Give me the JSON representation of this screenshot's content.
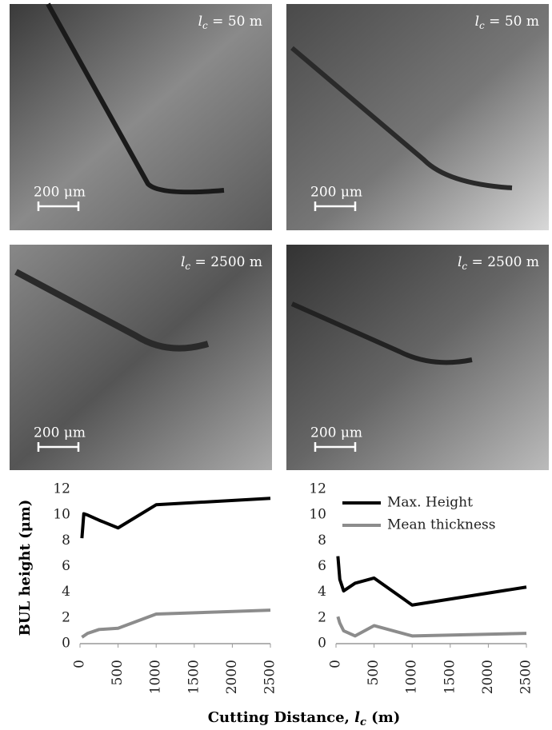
{
  "panels": [
    {
      "label_parts": [
        "l",
        "c",
        " = 50 m"
      ],
      "scale_bar": "200 μm"
    },
    {
      "label_parts": [
        "l",
        "c",
        " = 50 m"
      ],
      "scale_bar": "200 μm"
    },
    {
      "label_parts": [
        "l",
        "c",
        " = 2500 m"
      ],
      "scale_bar": "200 μm"
    },
    {
      "label_parts": [
        "l",
        "c",
        " = 2500 m"
      ],
      "scale_bar": "200 μm"
    }
  ],
  "y_label": "BUL height (μm)",
  "x_label_parts": [
    "Cutting Distance, ",
    "l",
    "c",
    " (m)"
  ],
  "chart_data": [
    {
      "type": "line",
      "x": [
        25,
        50,
        100,
        250,
        500,
        1000,
        2500
      ],
      "series": [
        {
          "color": "#000000",
          "values": [
            8.2,
            10.1,
            10.0,
            9.6,
            9.0,
            10.8,
            11.3
          ]
        },
        {
          "color": "#8c8c8c",
          "values": [
            0.5,
            0.6,
            0.8,
            1.1,
            1.2,
            2.3,
            2.6
          ]
        }
      ],
      "xlim": [
        0,
        2500
      ],
      "xticks": [
        0,
        500,
        1000,
        1500,
        2000,
        2500
      ],
      "ylim": [
        0,
        12
      ],
      "yticks": [
        0,
        2,
        4,
        6,
        8,
        10,
        12
      ]
    },
    {
      "type": "line",
      "x": [
        25,
        50,
        100,
        250,
        500,
        1000,
        2500
      ],
      "series": [
        {
          "name": "Max. Height",
          "color": "#000000",
          "values": [
            6.8,
            5.0,
            4.1,
            4.7,
            5.1,
            3.0,
            4.4
          ]
        },
        {
          "name": "Mean thickness",
          "color": "#8c8c8c",
          "values": [
            2.1,
            1.6,
            1.0,
            0.6,
            1.4,
            0.6,
            0.8
          ]
        }
      ],
      "xlim": [
        0,
        2500
      ],
      "xticks": [
        0,
        500,
        1000,
        1500,
        2000,
        2500
      ],
      "ylim": [
        0,
        12
      ],
      "yticks": [
        0,
        2,
        4,
        6,
        8,
        10,
        12
      ],
      "legend": "upper right"
    }
  ]
}
